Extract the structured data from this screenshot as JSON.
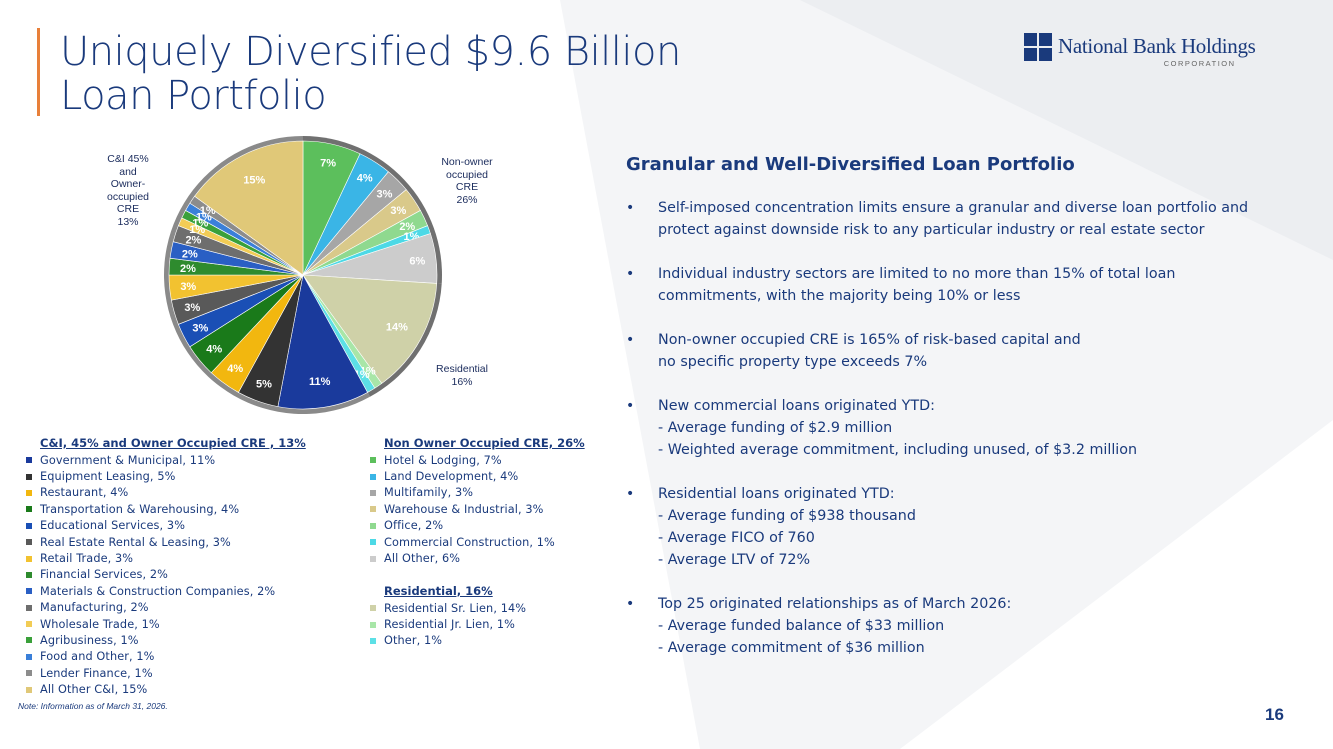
{
  "slide": {
    "title_line1": "Uniquely Diversified $9.6 Billion",
    "title_line2": "Loan Portfolio",
    "page_number": "16",
    "note": "Note: Information as of March 31, 2026."
  },
  "logo": {
    "name": "National Bank Holdings",
    "sub": "CORPORATION"
  },
  "pie_group_labels": {
    "ci": [
      "C&I 45%",
      "and",
      "Owner-",
      "occupied",
      "CRE",
      "13%"
    ],
    "cre": [
      "Non-owner",
      "occupied",
      "CRE",
      "26%"
    ],
    "residential": [
      "Residential",
      "16%"
    ]
  },
  "legend": {
    "ci_header": "C&I, 45% and Owner Occupied CRE , 13%",
    "cre_header": "Non Owner Occupied CRE, 26%",
    "res_header": "Residential, 16%"
  },
  "right": {
    "section_title": "Granular and Well-Diversified Loan Portfolio",
    "bullets": [
      {
        "lines": [
          "Self-imposed concentration limits ensure a granular and diverse loan portfolio and",
          "protect against downside risk to any particular industry or real estate sector"
        ]
      },
      {
        "lines": [
          "Individual industry sectors are limited to no more than 15% of total loan",
          "commitments, with the majority being 10% or less"
        ]
      },
      {
        "lines": [
          "Non-owner occupied CRE is 165% of risk-based capital and",
          "no specific property type exceeds 7%"
        ]
      },
      {
        "lines": [
          "New commercial loans originated YTD:",
          "-  Average funding of $2.9 million",
          "-  Weighted average commitment, including unused, of $3.2 million"
        ]
      },
      {
        "lines": [
          "Residential loans originated YTD:",
          "-  Average funding of $938 thousand",
          "-  Average FICO of 760",
          "-  Average LTV of 72%"
        ]
      },
      {
        "lines": [
          "Top 25 originated relationships as of March 2026:",
          "-  Average funded balance of $33 million",
          "-  Average commitment of $36 million"
        ]
      }
    ]
  },
  "chart_data": {
    "type": "pie",
    "title": "",
    "slices": [
      {
        "name": "Hotel & Lodging, 7%",
        "value": 7,
        "label": "7%",
        "color": "#5cbf5c",
        "group": "cre"
      },
      {
        "name": "Land Development, 4%",
        "value": 4,
        "label": "4%",
        "color": "#3ab5e6",
        "group": "cre"
      },
      {
        "name": "Multifamily, 3%",
        "value": 3,
        "label": "3%",
        "color": "#a6a6a6",
        "group": "cre"
      },
      {
        "name": "Warehouse & Industrial, 3%",
        "value": 3,
        "label": "3%",
        "color": "#d9c98a",
        "group": "cre"
      },
      {
        "name": "Office, 2%",
        "value": 2,
        "label": "2%",
        "color": "#8fd98f",
        "group": "cre"
      },
      {
        "name": "Commercial Construction, 1%",
        "value": 1,
        "label": "1%",
        "color": "#4dd9e6",
        "group": "cre"
      },
      {
        "name": "All Other, 6%",
        "value": 6,
        "label": "6%",
        "color": "#cccccc",
        "group": "cre"
      },
      {
        "name": "Residential Sr. Lien, 14%",
        "value": 14,
        "label": "14%",
        "color": "#cfd1a8",
        "group": "res"
      },
      {
        "name": "Residential Jr. Lien, 1%",
        "value": 1,
        "label": "1%",
        "color": "#a8e6a8",
        "group": "res"
      },
      {
        "name": "Other, 1%",
        "value": 1,
        "label": "1%",
        "color": "#5ce0e6",
        "group": "res"
      },
      {
        "name": "Government & Municipal, 11%",
        "value": 11,
        "label": "11%",
        "color": "#1a3a9c",
        "group": "ci"
      },
      {
        "name": "Equipment Leasing, 5%",
        "value": 5,
        "label": "5%",
        "color": "#333333",
        "group": "ci"
      },
      {
        "name": "Restaurant, 4%",
        "value": 4,
        "label": "4%",
        "color": "#f2b70f",
        "group": "ci"
      },
      {
        "name": "Transportation & Warehousing, 4%",
        "value": 4,
        "label": "4%",
        "color": "#1a7a1a",
        "group": "ci"
      },
      {
        "name": "Educational Services, 3%",
        "value": 3,
        "label": "3%",
        "color": "#1a4fb5",
        "group": "ci"
      },
      {
        "name": "Real Estate Rental & Leasing, 3%",
        "value": 3,
        "label": "3%",
        "color": "#595959",
        "group": "ci"
      },
      {
        "name": "Retail Trade, 3%",
        "value": 3,
        "label": "3%",
        "color": "#f2c230",
        "group": "ci"
      },
      {
        "name": "Financial Services, 2%",
        "value": 2,
        "label": "2%",
        "color": "#2e8b2e",
        "group": "ci"
      },
      {
        "name": "Materials & Construction Companies, 2%",
        "value": 2,
        "label": "2%",
        "color": "#2a5fc4",
        "group": "ci"
      },
      {
        "name": "Manufacturing, 2%",
        "value": 2,
        "label": "2%",
        "color": "#6e6e6e",
        "group": "ci"
      },
      {
        "name": "Wholesale Trade, 1%",
        "value": 1,
        "label": "1%",
        "color": "#f2cc55",
        "group": "ci"
      },
      {
        "name": "Agribusiness, 1%",
        "value": 1,
        "label": "1%",
        "color": "#3aa03a",
        "group": "ci"
      },
      {
        "name": "Food and Other, 1%",
        "value": 1,
        "label": "1%",
        "color": "#3a7fd9",
        "group": "ci"
      },
      {
        "name": "Lender Finance, 1%",
        "value": 1,
        "label": "1%",
        "color": "#8c8c8c",
        "group": "ci"
      },
      {
        "name": "All Other C&I, 15%",
        "value": 15,
        "label": "15%",
        "color": "#e0c878",
        "group": "ci"
      }
    ],
    "legend_ci": [
      {
        "label": "Government & Municipal, 11%",
        "color": "#1a3a9c"
      },
      {
        "label": "Equipment Leasing, 5%",
        "color": "#333333"
      },
      {
        "label": "Restaurant, 4%",
        "color": "#f2b70f"
      },
      {
        "label": "Transportation & Warehousing, 4%",
        "color": "#1a7a1a"
      },
      {
        "label": "Educational Services, 3%",
        "color": "#1a4fb5"
      },
      {
        "label": "Real Estate Rental & Leasing, 3%",
        "color": "#595959"
      },
      {
        "label": "Retail Trade, 3%",
        "color": "#f2c230"
      },
      {
        "label": "Financial Services, 2%",
        "color": "#2e8b2e"
      },
      {
        "label": "Materials & Construction Companies, 2%",
        "color": "#2a5fc4"
      },
      {
        "label": "Manufacturing, 2%",
        "color": "#6e6e6e"
      },
      {
        "label": "Wholesale Trade, 1%",
        "color": "#f2cc55"
      },
      {
        "label": "Agribusiness, 1%",
        "color": "#3aa03a"
      },
      {
        "label": "Food and Other, 1%",
        "color": "#3a7fd9"
      },
      {
        "label": "Lender Finance, 1%",
        "color": "#8c8c8c"
      },
      {
        "label": "All Other C&I, 15%",
        "color": "#e0c878"
      }
    ],
    "legend_cre": [
      {
        "label": "Hotel & Lodging, 7%",
        "color": "#5cbf5c"
      },
      {
        "label": "Land Development, 4%",
        "color": "#3ab5e6"
      },
      {
        "label": "Multifamily, 3%",
        "color": "#a6a6a6"
      },
      {
        "label": "Warehouse & Industrial, 3%",
        "color": "#d9c98a"
      },
      {
        "label": "Office, 2%",
        "color": "#8fd98f"
      },
      {
        "label": "Commercial Construction, 1%",
        "color": "#4dd9e6"
      },
      {
        "label": "All Other, 6%",
        "color": "#cccccc"
      }
    ],
    "legend_res": [
      {
        "label": "Residential Sr. Lien, 14%",
        "color": "#cfd1a8"
      },
      {
        "label": "Residential Jr. Lien, 1%",
        "color": "#a8e6a8"
      },
      {
        "label": "Other, 1%",
        "color": "#5ce0e6"
      }
    ]
  }
}
